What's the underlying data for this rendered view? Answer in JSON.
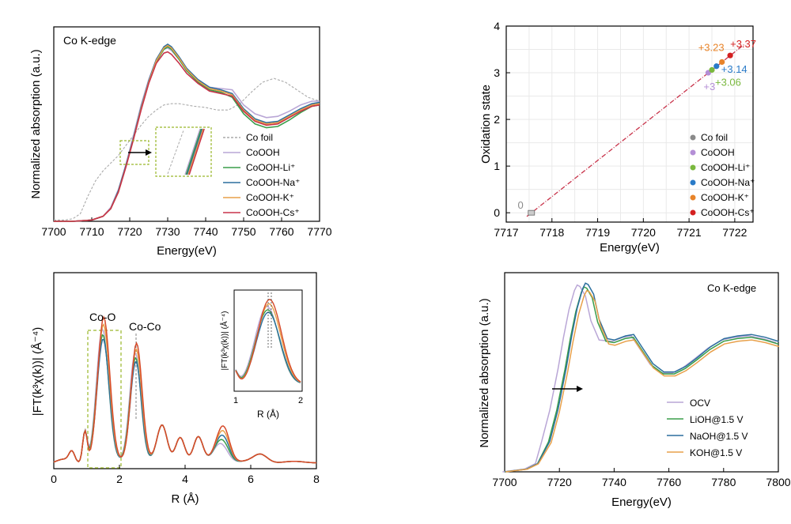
{
  "chart_data": [
    {
      "id": "xanes_top",
      "type": "line",
      "title": "Co K-edge",
      "xlabel": "Energy(eV)",
      "ylabel": "Normalized absorption (a.u.)",
      "xlim": [
        7700,
        7770
      ],
      "ylim": [
        0,
        1.5
      ],
      "xticks": [
        7700,
        7710,
        7720,
        7730,
        7740,
        7750,
        7760,
        7770
      ],
      "series": [
        {
          "name": "Co foil",
          "color": "#aaaaaa",
          "dash": true,
          "x": [
            7700,
            7703,
            7705,
            7707,
            7709,
            7711,
            7713,
            7715,
            7717,
            7719,
            7721,
            7723,
            7725,
            7727,
            7729,
            7731,
            7733,
            7735,
            7737,
            7740,
            7743,
            7746,
            7749,
            7752,
            7755,
            7758,
            7761,
            7764,
            7767,
            7770
          ],
          "y": [
            0.01,
            0.01,
            0.02,
            0.06,
            0.2,
            0.32,
            0.4,
            0.46,
            0.52,
            0.6,
            0.68,
            0.76,
            0.83,
            0.88,
            0.92,
            0.93,
            0.93,
            0.92,
            0.91,
            0.9,
            0.88,
            0.88,
            0.93,
            1.02,
            1.1,
            1.13,
            1.1,
            1.04,
            0.98,
            0.95
          ]
        },
        {
          "name": "CoOOH",
          "color": "#b9a6d6",
          "dash": false,
          "x": [
            7700,
            7705,
            7710,
            7713,
            7715,
            7717,
            7719,
            7721,
            7723,
            7725,
            7727,
            7729,
            7730,
            7731,
            7733,
            7735,
            7738,
            7741,
            7744,
            7747,
            7750,
            7753,
            7756,
            7759,
            7762,
            7765,
            7768,
            7770
          ],
          "y": [
            0.0,
            0.0,
            0.01,
            0.04,
            0.11,
            0.25,
            0.45,
            0.68,
            0.92,
            1.12,
            1.28,
            1.36,
            1.37,
            1.35,
            1.28,
            1.2,
            1.12,
            1.06,
            1.05,
            1.04,
            0.92,
            0.85,
            0.82,
            0.83,
            0.87,
            0.92,
            0.95,
            0.95
          ]
        },
        {
          "name": "CoOOH-Li⁺",
          "color": "#3a9d4a",
          "dash": false,
          "x": [
            7700,
            7705,
            7710,
            7713,
            7715,
            7717,
            7719,
            7721,
            7723,
            7725,
            7727,
            7729,
            7730,
            7731,
            7733,
            7735,
            7738,
            7741,
            7744,
            7747,
            7750,
            7753,
            7756,
            7759,
            7762,
            7765,
            7768,
            7770
          ],
          "y": [
            0.0,
            0.0,
            0.01,
            0.04,
            0.1,
            0.24,
            0.44,
            0.66,
            0.9,
            1.1,
            1.26,
            1.36,
            1.38,
            1.36,
            1.28,
            1.19,
            1.1,
            1.04,
            1.02,
            0.98,
            0.85,
            0.77,
            0.74,
            0.75,
            0.8,
            0.86,
            0.91,
            0.92
          ]
        },
        {
          "name": "CoOOH-Na⁺",
          "color": "#2c6f9e",
          "dash": false,
          "x": [
            7700,
            7705,
            7710,
            7713,
            7715,
            7717,
            7719,
            7721,
            7723,
            7725,
            7727,
            7729,
            7730,
            7731,
            7733,
            7735,
            7738,
            7741,
            7744,
            7747,
            7750,
            7753,
            7756,
            7759,
            7762,
            7765,
            7768,
            7770
          ],
          "y": [
            0.0,
            0.0,
            0.01,
            0.04,
            0.1,
            0.24,
            0.44,
            0.66,
            0.9,
            1.11,
            1.28,
            1.38,
            1.4,
            1.38,
            1.3,
            1.21,
            1.12,
            1.06,
            1.04,
            1.01,
            0.89,
            0.81,
            0.78,
            0.79,
            0.84,
            0.89,
            0.93,
            0.94
          ]
        },
        {
          "name": "CoOOH-K⁺",
          "color": "#e8a04a",
          "dash": false,
          "x": [
            7700,
            7705,
            7710,
            7713,
            7715,
            7717,
            7719,
            7721,
            7723,
            7725,
            7727,
            7729,
            7730,
            7731,
            7733,
            7735,
            7738,
            7741,
            7744,
            7747,
            7750,
            7753,
            7756,
            7759,
            7762,
            7765,
            7768,
            7770
          ],
          "y": [
            0.0,
            0.0,
            0.01,
            0.04,
            0.1,
            0.23,
            0.43,
            0.65,
            0.89,
            1.1,
            1.27,
            1.37,
            1.39,
            1.37,
            1.29,
            1.2,
            1.11,
            1.05,
            1.03,
            1.0,
            0.88,
            0.8,
            0.77,
            0.78,
            0.83,
            0.88,
            0.92,
            0.93
          ]
        },
        {
          "name": "CoOOH-Cs⁺",
          "color": "#c8334a",
          "dash": false,
          "x": [
            7700,
            7705,
            7710,
            7713,
            7715,
            7717,
            7719,
            7721,
            7723,
            7725,
            7727,
            7729,
            7730,
            7731,
            7733,
            7735,
            7738,
            7741,
            7744,
            7747,
            7750,
            7753,
            7756,
            7759,
            7762,
            7765,
            7768,
            7770
          ],
          "y": [
            0.0,
            0.0,
            0.01,
            0.04,
            0.1,
            0.23,
            0.43,
            0.65,
            0.88,
            1.09,
            1.25,
            1.33,
            1.34,
            1.32,
            1.25,
            1.17,
            1.09,
            1.03,
            1.01,
            0.99,
            0.87,
            0.79,
            0.76,
            0.77,
            0.82,
            0.87,
            0.91,
            0.92
          ]
        }
      ]
    },
    {
      "id": "oxidation",
      "type": "scatter",
      "xlabel": "Energy(eV)",
      "ylabel": "Oxidation state",
      "xlim": [
        7717,
        7722.4
      ],
      "ylim": [
        -0.2,
        4
      ],
      "xticks": [
        7717,
        7718,
        7719,
        7720,
        7721,
        7722
      ],
      "yticks": [
        0,
        1,
        2,
        3,
        4
      ],
      "grid": true,
      "fit_line": {
        "x": [
          7717.45,
          7722.2
        ],
        "y": [
          -0.08,
          3.6
        ],
        "color": "#c8334a"
      },
      "points": [
        {
          "name": "Co foil",
          "x": 7717.55,
          "y": 0.0,
          "label": "0",
          "color": "#8a8a8a"
        },
        {
          "name": "CoOOH",
          "x": 7721.42,
          "y": 3.0,
          "label": "+3",
          "color": "#b48fd6"
        },
        {
          "name": "CoOOH-Li⁺",
          "x": 7721.5,
          "y": 3.06,
          "label": "+3.06",
          "color": "#7ab83e"
        },
        {
          "name": "CoOOH-Na⁺",
          "x": 7721.6,
          "y": 3.14,
          "label": "+3.14",
          "color": "#2a7bc8"
        },
        {
          "name": "CoOOH-K⁺",
          "x": 7721.72,
          "y": 3.23,
          "label": "+3.23",
          "color": "#e8842a"
        },
        {
          "name": "CoOOH-Cs⁺",
          "x": 7721.9,
          "y": 3.37,
          "label": "+3.37",
          "color": "#d42020"
        }
      ]
    },
    {
      "id": "exafs",
      "type": "line",
      "xlabel": "R (Å)",
      "ylabel": "|FT(k³χ(k))| (Å⁻⁴)",
      "xlim": [
        0,
        8
      ],
      "ylim": [
        0,
        1.2
      ],
      "xticks": [
        0,
        2,
        4,
        6,
        8
      ],
      "annotations": [
        "Co-O",
        "Co-Co"
      ],
      "inset": {
        "xlabel": "R (Å)",
        "ylabel": "|FT(k³χ(k))| (Å⁻⁴)",
        "xticks": [
          1,
          2
        ]
      },
      "series": [
        {
          "name": "CoOOH",
          "color": "#b9a6d6",
          "amp": 0.92,
          "shift": -0.02
        },
        {
          "name": "CoOOH-Li⁺",
          "color": "#3a9d4a",
          "amp": 0.88,
          "shift": -0.01
        },
        {
          "name": "CoOOH-Na⁺",
          "color": "#2c6f9e",
          "amp": 0.85,
          "shift": 0.0
        },
        {
          "name": "CoOOH-K⁺",
          "color": "#e8a04a",
          "amp": 0.95,
          "shift": 0.01
        },
        {
          "name": "CoOOH-Cs⁺",
          "color": "#d64a2a",
          "amp": 1.0,
          "shift": 0.02
        }
      ]
    },
    {
      "id": "xanes_operando",
      "type": "line",
      "title": "Co K-edge",
      "xlabel": "Energy(eV)",
      "ylabel": "Normalized absorption (a.u.)",
      "xlim": [
        7700,
        7800
      ],
      "ylim": [
        0,
        1.45
      ],
      "xticks": [
        7700,
        7720,
        7740,
        7760,
        7780,
        7800
      ],
      "series": [
        {
          "name": "OCV",
          "color": "#b9a6d6",
          "shift": -2.5,
          "amp": 1.0
        },
        {
          "name": "LiOH@1.5 V",
          "color": "#3a9d4a",
          "shift": 0.0,
          "amp": 0.99
        },
        {
          "name": "NaOH@1.5 V",
          "color": "#2c6f9e",
          "shift": 0.5,
          "amp": 1.01
        },
        {
          "name": "KOH@1.5 V",
          "color": "#e8a04a",
          "shift": 1.0,
          "amp": 0.97
        }
      ]
    }
  ]
}
